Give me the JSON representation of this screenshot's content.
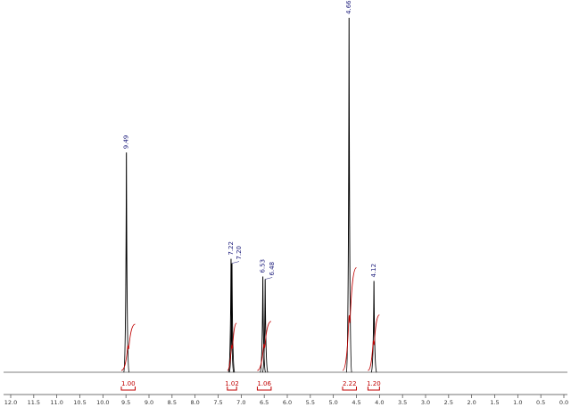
{
  "chart_data": {
    "type": "line",
    "x": [
      9.49,
      7.22,
      7.2,
      6.53,
      6.48,
      4.66,
      4.12
    ],
    "x_labels": [
      "9.49",
      "7.22",
      "7.20",
      "6.53",
      "6.48",
      "4.66",
      "4.12"
    ],
    "values": [
      248,
      128,
      123,
      108,
      105,
      400,
      103
    ],
    "color": "#000000",
    "integrals": {
      "ranges": [
        [
          9.6,
          9.3
        ],
        [
          7.3,
          7.1
        ],
        [
          6.65,
          6.35
        ],
        [
          4.8,
          4.5
        ],
        [
          4.25,
          4.0
        ]
      ],
      "values": [
        1.0,
        1.02,
        1.06,
        2.22,
        1.2
      ],
      "value_labels": [
        "1.00",
        "1.02",
        "1.06",
        "2.22",
        "1.20"
      ],
      "color": "#c00000"
    },
    "xlim": [
      12.0,
      0.0
    ],
    "ylim": [
      0,
      410
    ],
    "xticks": [
      {
        "value": 12,
        "label": "12.0"
      },
      11.5,
      {
        "value": 11,
        "label": "11.0"
      },
      10.5,
      {
        "value": 10,
        "label": "10.0"
      },
      9.5,
      {
        "value": 9,
        "label": "9.0"
      },
      8.5,
      {
        "value": 8,
        "label": "8.0"
      },
      7.5,
      {
        "value": 7,
        "label": "7.0"
      },
      6.5,
      {
        "value": 6,
        "label": "6.0"
      },
      5.5,
      {
        "value": 5,
        "label": "5.0"
      },
      4.5,
      {
        "value": 4,
        "label": "4.0"
      },
      3.5,
      {
        "value": 3,
        "label": "3.0"
      },
      2.5,
      {
        "value": 2,
        "label": "2.0"
      },
      1.5,
      {
        "value": 1,
        "label": "1.0"
      },
      0.5,
      {
        "value": 0,
        "label": "0.0"
      }
    ]
  }
}
